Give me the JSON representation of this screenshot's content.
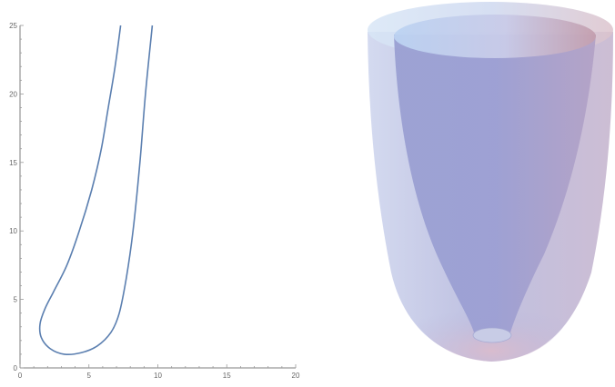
{
  "chart_data": [
    {
      "type": "line",
      "xlim": [
        0,
        20
      ],
      "ylim": [
        0,
        25
      ],
      "x_ticks": [
        0,
        5,
        10,
        15,
        20
      ],
      "y_ticks": [
        0,
        5,
        10,
        15,
        20,
        25
      ],
      "x_tick_labels": [
        "0",
        "5",
        "10",
        "15",
        "20"
      ],
      "y_tick_labels": [
        "0",
        "5",
        "10",
        "15",
        "20",
        "25"
      ],
      "grid": false,
      "line_color": "#5b7fb0",
      "series": [
        {
          "points": [
            [
              7.3,
              25
            ],
            [
              6.9,
              22
            ],
            [
              6.4,
              19
            ],
            [
              5.9,
              16
            ],
            [
              5.2,
              13
            ],
            [
              4.3,
              10
            ],
            [
              3.4,
              7.5
            ],
            [
              2.4,
              5.5
            ],
            [
              1.8,
              4.3
            ],
            [
              1.45,
              3.2
            ],
            [
              1.55,
              2.2
            ],
            [
              2.2,
              1.4
            ],
            [
              3.2,
              1.0
            ],
            [
              4.4,
              1.1
            ],
            [
              5.6,
              1.6
            ],
            [
              6.6,
              2.6
            ],
            [
              7.2,
              4.0
            ],
            [
              7.7,
              6.5
            ],
            [
              8.2,
              10
            ],
            [
              8.7,
              15
            ],
            [
              9.1,
              20
            ],
            [
              9.6,
              25
            ]
          ]
        }
      ]
    },
    {
      "type": "3d-surface",
      "shape": "double translucent cup / vase",
      "colors": {
        "surface_main": "#a7a9d6",
        "surface_rim": "#c9dcf0",
        "surface_warm": "#d3b1c0"
      }
    }
  ]
}
